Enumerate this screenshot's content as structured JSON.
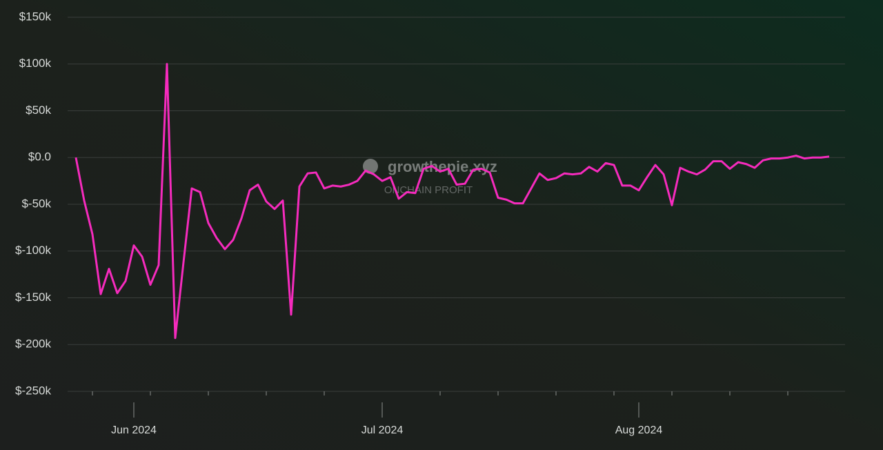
{
  "chart_data": {
    "type": "line",
    "watermark": "growthepie.xyz",
    "subtitle": "ONCHAIN PROFIT",
    "categories": [
      null,
      null,
      null,
      null,
      null,
      null,
      null,
      "Jun 2024",
      null,
      null,
      null,
      null,
      null,
      null,
      null,
      null,
      null,
      null,
      null,
      null,
      null,
      null,
      null,
      null,
      null,
      null,
      null,
      null,
      null,
      null,
      null,
      null,
      null,
      null,
      null,
      null,
      null,
      "Jul 2024",
      null,
      null,
      null,
      null,
      null,
      null,
      null,
      null,
      null,
      null,
      null,
      null,
      null,
      null,
      null,
      null,
      null,
      null,
      null,
      null,
      null,
      null,
      null,
      null,
      null,
      null,
      null,
      null,
      null,
      null,
      "Aug 2024",
      null,
      null,
      null,
      null,
      null,
      null,
      null,
      null,
      null,
      null,
      null,
      null,
      null,
      null,
      null,
      null,
      null,
      null,
      null,
      null,
      null,
      null,
      null
    ],
    "series": [
      {
        "color": "#f52bbd",
        "values": [
          0,
          -46000,
          -82000,
          -146000,
          -119000,
          -145000,
          -132000,
          -94000,
          -106000,
          -136000,
          -115000,
          100000,
          -193000,
          -112000,
          -33000,
          -37000,
          -70000,
          -86000,
          -98000,
          -88000,
          -65000,
          -35000,
          -29000,
          -47000,
          -55000,
          -46000,
          -168000,
          -31000,
          -17000,
          -16000,
          -33000,
          -30000,
          -31000,
          -29000,
          -25000,
          -14000,
          -18000,
          -25000,
          -21000,
          -44000,
          -37000,
          -38000,
          -12000,
          -9000,
          -15000,
          -12000,
          -29000,
          -28000,
          -13000,
          -12000,
          -16000,
          -43000,
          -45000,
          -49000,
          -49000,
          -33000,
          -17000,
          -24000,
          -22000,
          -17000,
          -18000,
          -17000,
          -10000,
          -15000,
          -6000,
          -8000,
          -30000,
          -30000,
          -35000,
          -21000,
          -8000,
          -18000,
          -51000,
          -11000,
          -15000,
          -18000,
          -13000,
          -4000,
          -4000,
          -12000,
          -5000,
          -7000,
          -11000,
          -3000,
          -1000,
          -1000,
          0,
          2000,
          -1000,
          0,
          0,
          1000
        ]
      }
    ],
    "ylim": [
      -250000,
      150000
    ],
    "yticks": [
      {
        "value": 150000,
        "label": "$150k"
      },
      {
        "value": 100000,
        "label": "$100k"
      },
      {
        "value": 50000,
        "label": "$50k"
      },
      {
        "value": 0,
        "label": "$0.0"
      },
      {
        "value": -50000,
        "label": "$-50k"
      },
      {
        "value": -100000,
        "label": "$-100k"
      },
      {
        "value": -150000,
        "label": "$-150k"
      },
      {
        "value": -200000,
        "label": "$-200k"
      },
      {
        "value": -250000,
        "label": "$-250k"
      }
    ],
    "grid": true
  }
}
